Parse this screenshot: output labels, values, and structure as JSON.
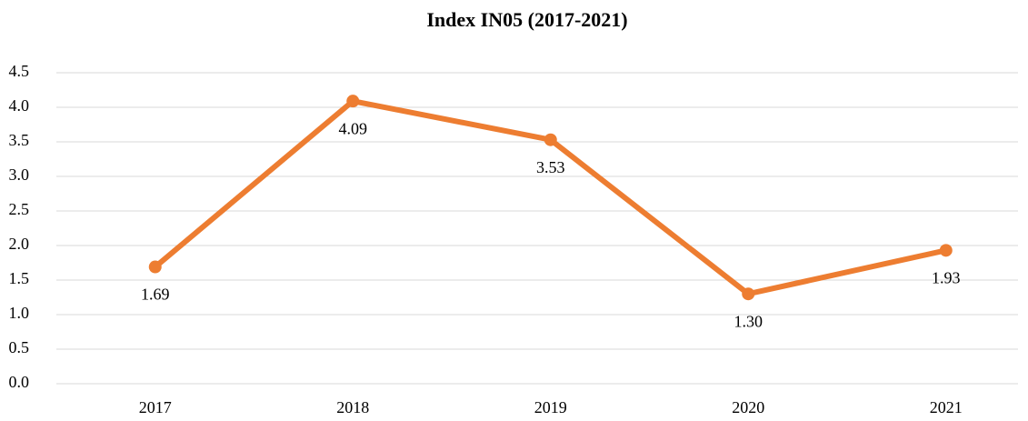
{
  "chart_data": {
    "type": "line",
    "title": "Index IN05 (2017-2021)",
    "categories": [
      "2017",
      "2018",
      "2019",
      "2020",
      "2021"
    ],
    "values": [
      1.69,
      4.09,
      3.53,
      1.3,
      1.93
    ],
    "value_labels": [
      "1.69",
      "4.09",
      "3.53",
      "1.30",
      "1.93"
    ],
    "color": "#ed7d31",
    "ylim": [
      0,
      4.5
    ],
    "yticks": [
      {
        "value": 0,
        "label": "0.0"
      },
      0.5,
      {
        "value": 1,
        "label": "1.0"
      },
      1.5,
      {
        "value": 2,
        "label": "2.0"
      },
      2.5,
      {
        "value": 3,
        "label": "3.0"
      },
      3.5,
      {
        "value": 4,
        "label": "4.0"
      },
      4.5
    ],
    "grid": true
  }
}
